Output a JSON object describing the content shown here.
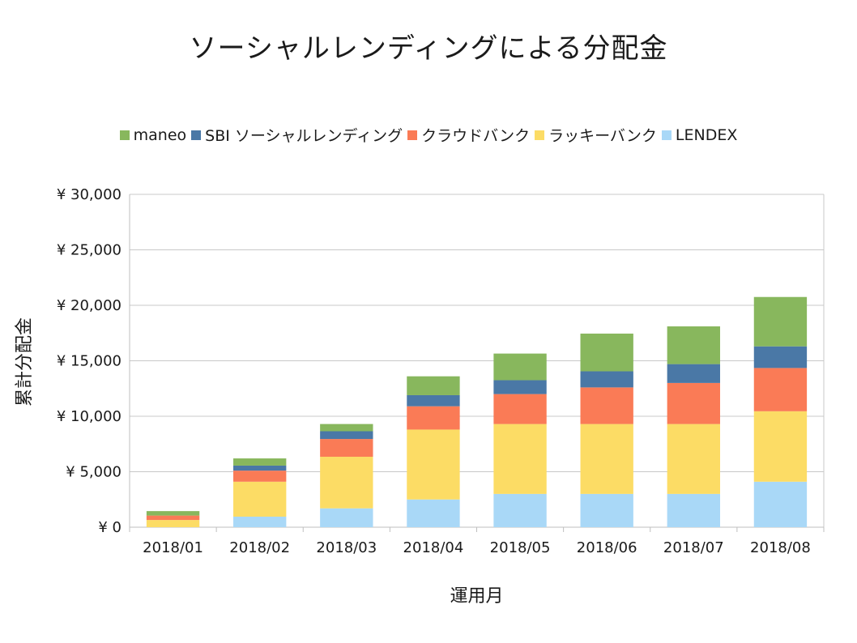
{
  "chart_data": {
    "type": "bar",
    "stacked": true,
    "title": "ソーシャルレンディングによる分配金",
    "xlabel": "運用月",
    "ylabel": "累計分配金",
    "ylim": [
      0,
      30000
    ],
    "y_ticks": [
      "¥ 0",
      "¥ 5,000",
      "¥ 10,000",
      "¥ 15,000",
      "¥ 20,000",
      "¥ 25,000",
      "¥ 30,000"
    ],
    "y_tick_values": [
      0,
      5000,
      10000,
      15000,
      20000,
      25000,
      30000
    ],
    "grid": true,
    "legend_position": "top",
    "categories": [
      "2018/01",
      "2018/02",
      "2018/03",
      "2018/04",
      "2018/05",
      "2018/06",
      "2018/07",
      "2018/08"
    ],
    "series": [
      {
        "name": "LENDEX",
        "color": "#a9d8f7",
        "values": [
          0,
          950,
          1700,
          2500,
          3000,
          3000,
          3000,
          4100
        ]
      },
      {
        "name": "ラッキーバンク",
        "color": "#fcdc65",
        "values": [
          650,
          3150,
          4650,
          6300,
          6300,
          6300,
          6300,
          6350
        ]
      },
      {
        "name": "クラウドバンク",
        "color": "#fa7b56",
        "values": [
          400,
          1000,
          1600,
          2100,
          2700,
          3300,
          3700,
          3900
        ]
      },
      {
        "name": "SBI ソーシャルレンディング",
        "color": "#4a78a6",
        "values": [
          0,
          450,
          700,
          1000,
          1250,
          1450,
          1700,
          1950
        ]
      },
      {
        "name": "maneo",
        "color": "#88b75d",
        "values": [
          400,
          650,
          650,
          1700,
          2400,
          3400,
          3400,
          4450
        ]
      }
    ],
    "legend_order": [
      "maneo",
      "SBI ソーシャルレンディング",
      "クラウドバンク",
      "ラッキーバンク",
      "LENDEX"
    ]
  }
}
